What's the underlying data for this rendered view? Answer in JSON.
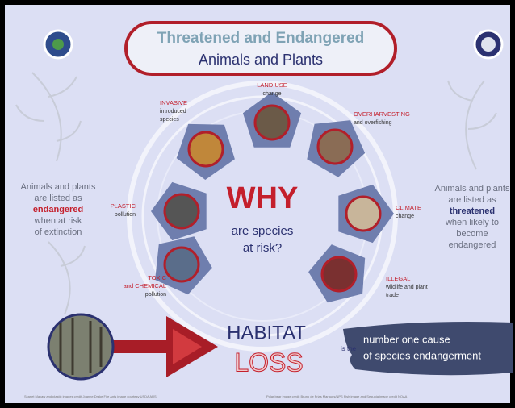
{
  "header": {
    "title": [
      "Threatened and Endangered",
      "Animals and Plants"
    ]
  },
  "left_text": [
    "Animals and plants",
    "are listed as",
    "endangered",
    "when at risk",
    "of extinction"
  ],
  "right_text": [
    "Animals and plants",
    "are listed as",
    "threatened",
    "when likely to",
    "become",
    "endangered"
  ],
  "center": {
    "why": "WHY",
    "question": [
      "are species",
      "at risk?"
    ]
  },
  "causes": [
    {
      "label": [
        "LAND USE"
      ],
      "detail": [
        "change"
      ]
    },
    {
      "label": [
        "OVERHARVESTING"
      ],
      "detail": [
        "and overfishing"
      ]
    },
    {
      "label": [
        "CLIMATE"
      ],
      "detail": [
        "change"
      ]
    },
    {
      "label": [
        "ILLEGAL"
      ],
      "detail": [
        "wildlife and plant",
        "trade"
      ]
    },
    {
      "label": [
        "TOXIC",
        "and CHEMICAL"
      ],
      "detail": [
        "pollution"
      ]
    },
    {
      "label": [
        "PLASTIC"
      ],
      "detail": [
        "pollution"
      ]
    },
    {
      "label": [
        "INVASIVE"
      ],
      "detail": [
        "introduced",
        "species"
      ]
    }
  ],
  "bottom": {
    "habitat": "HABITAT",
    "loss": "LOSS",
    "is_the": "is the",
    "cause": [
      "number one cause",
      "of species endangerment"
    ]
  },
  "credits": [
    "Scarlet Macaw and plastic images credit Joanne Drake   Fire Ants image courtesy USDA ARS",
    "Polar bear image credit Bruno de Frias Marques/NPS   Fish image and Sequoia image credit NOAA"
  ]
}
